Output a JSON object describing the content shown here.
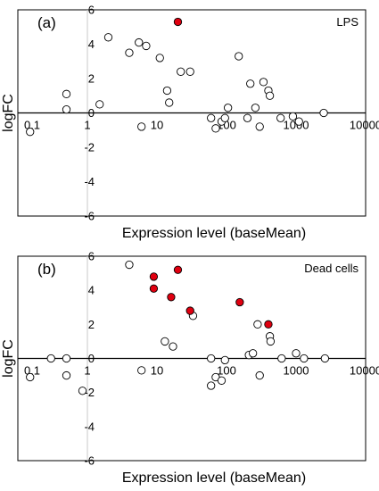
{
  "chart_data": [
    {
      "type": "scatter",
      "panel_label": "(a)",
      "condition_label": "LPS",
      "xlabel": "Expression level (baseMean)",
      "ylabel": "logFC",
      "x_scale": "log",
      "xlim": [
        0.1,
        10000
      ],
      "ylim": [
        -6,
        6
      ],
      "xticks": [
        "0.1",
        "1",
        "10",
        "100",
        "1000",
        "10000"
      ],
      "yticks": [
        "6",
        "4",
        "2",
        "0",
        "-2",
        "-4",
        "-6"
      ],
      "grid": false,
      "reference_lines": [
        "y = 0",
        "x = 1"
      ],
      "series": [
        {
          "style": "open",
          "fill": "#ffffff",
          "points": [
            {
              "x": 0.15,
              "y": -1.1
            },
            {
              "x": 0.5,
              "y": 1.1
            },
            {
              "x": 0.5,
              "y": 0.2
            },
            {
              "x": 1.5,
              "y": 0.5
            },
            {
              "x": 2.0,
              "y": 4.4
            },
            {
              "x": 4.0,
              "y": 3.5
            },
            {
              "x": 5.5,
              "y": 4.1
            },
            {
              "x": 7.0,
              "y": 3.9
            },
            {
              "x": 11,
              "y": 3.2
            },
            {
              "x": 14,
              "y": 1.3
            },
            {
              "x": 15,
              "y": 0.6
            },
            {
              "x": 6,
              "y": -0.8
            },
            {
              "x": 22,
              "y": 2.4
            },
            {
              "x": 30,
              "y": 2.4
            },
            {
              "x": 60,
              "y": -0.3
            },
            {
              "x": 70,
              "y": -0.9
            },
            {
              "x": 85,
              "y": -0.5
            },
            {
              "x": 95,
              "y": -0.3
            },
            {
              "x": 105,
              "y": 0.3
            },
            {
              "x": 150,
              "y": 3.3
            },
            {
              "x": 200,
              "y": -0.3
            },
            {
              "x": 220,
              "y": 1.7
            },
            {
              "x": 260,
              "y": 0.3
            },
            {
              "x": 300,
              "y": -0.8
            },
            {
              "x": 340,
              "y": 1.8
            },
            {
              "x": 400,
              "y": 1.3
            },
            {
              "x": 420,
              "y": 1.0
            },
            {
              "x": 600,
              "y": -0.3
            },
            {
              "x": 900,
              "y": -0.2
            },
            {
              "x": 1100,
              "y": -0.5
            },
            {
              "x": 2500,
              "y": 0.0
            }
          ]
        },
        {
          "style": "filled",
          "fill": "#e00010",
          "points": [
            {
              "x": 20,
              "y": 5.3
            }
          ]
        }
      ]
    },
    {
      "type": "scatter",
      "panel_label": "(b)",
      "condition_label": "Dead cells",
      "xlabel": "Expression level (baseMean)",
      "ylabel": "logFC",
      "x_scale": "log",
      "xlim": [
        0.1,
        10000
      ],
      "ylim": [
        -6,
        6
      ],
      "xticks": [
        "0.1",
        "1",
        "10",
        "100",
        "1000",
        "10000"
      ],
      "yticks": [
        "6",
        "4",
        "2",
        "0",
        "-2",
        "-4",
        "-6"
      ],
      "grid": false,
      "reference_lines": [
        "y = 0",
        "x = 1"
      ],
      "series": [
        {
          "style": "open",
          "fill": "#ffffff",
          "points": [
            {
              "x": 0.15,
              "y": -1.1
            },
            {
              "x": 0.3,
              "y": 0.0
            },
            {
              "x": 0.5,
              "y": 0.0
            },
            {
              "x": 0.5,
              "y": -1.0
            },
            {
              "x": 0.85,
              "y": -1.9
            },
            {
              "x": 4.0,
              "y": 5.5
            },
            {
              "x": 6.0,
              "y": -0.7
            },
            {
              "x": 13,
              "y": 1.0
            },
            {
              "x": 17,
              "y": 0.7
            },
            {
              "x": 33,
              "y": 2.5
            },
            {
              "x": 60,
              "y": 0.0
            },
            {
              "x": 60,
              "y": -1.6
            },
            {
              "x": 70,
              "y": -1.1
            },
            {
              "x": 85,
              "y": -1.3
            },
            {
              "x": 95,
              "y": -0.1
            },
            {
              "x": 210,
              "y": 0.2
            },
            {
              "x": 240,
              "y": 0.3
            },
            {
              "x": 280,
              "y": 2.0
            },
            {
              "x": 300,
              "y": -1.0
            },
            {
              "x": 420,
              "y": 1.3
            },
            {
              "x": 430,
              "y": 1.0
            },
            {
              "x": 620,
              "y": 0.0
            },
            {
              "x": 1000,
              "y": 0.3
            },
            {
              "x": 1300,
              "y": 0.0
            },
            {
              "x": 2600,
              "y": 0.0
            }
          ]
        },
        {
          "style": "filled",
          "fill": "#e00010",
          "points": [
            {
              "x": 9,
              "y": 4.8
            },
            {
              "x": 9,
              "y": 4.1
            },
            {
              "x": 16,
              "y": 3.6
            },
            {
              "x": 20,
              "y": 5.2
            },
            {
              "x": 30,
              "y": 2.8
            },
            {
              "x": 155,
              "y": 3.3
            },
            {
              "x": 400,
              "y": 2.0
            }
          ]
        }
      ]
    }
  ]
}
